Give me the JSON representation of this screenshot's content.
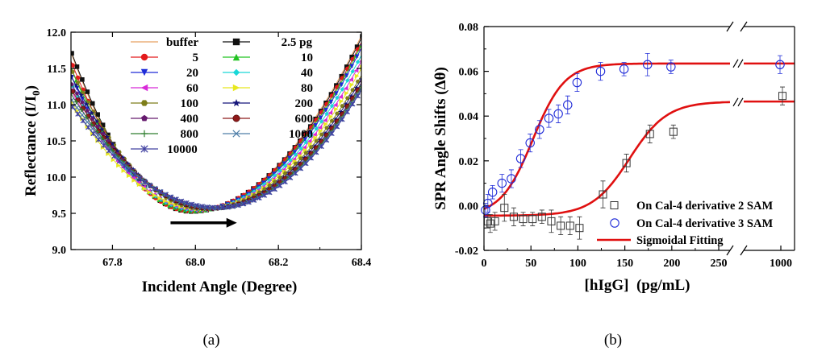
{
  "chart_data": [
    {
      "type": "line",
      "panel_label": "(a)",
      "xlabel": "Incident Angle (Degree)",
      "ylabel_main": "Reflectance (I/I",
      "ylabel_sub": "0",
      "ylabel_close": ")",
      "xlim": [
        67.7,
        68.4
      ],
      "ylim": [
        9.0,
        12.0
      ],
      "xticks": [
        "67.8",
        "68.0",
        "68.2",
        "68.4"
      ],
      "xtick_values": [
        67.8,
        68.0,
        68.2,
        68.4
      ],
      "yticks": [
        "9.0",
        "9.5",
        "10.0",
        "10.5",
        "11.0",
        "11.5",
        "12.0"
      ],
      "ytick_values": [
        9.0,
        9.5,
        10.0,
        10.5,
        11.0,
        11.5,
        12.0
      ],
      "arrow": {
        "from": [
          67.94,
          9.37
        ],
        "to": [
          68.1,
          9.37
        ]
      },
      "series": [
        {
          "name": "buffer",
          "color": "#e8a060",
          "marker": "none",
          "minimum": [
            67.985,
            9.52
          ],
          "left_end": 11.72,
          "right_end": 11.95
        },
        {
          "name": "2.5 pg",
          "color": "#111111",
          "marker": "square",
          "minimum": [
            67.99,
            9.525
          ],
          "left_end": 11.74,
          "right_end": 11.92
        },
        {
          "name": "5",
          "color": "#e31a1c",
          "marker": "circle",
          "minimum": [
            67.99,
            9.53
          ],
          "left_end": 11.6,
          "right_end": 11.86
        },
        {
          "name": "10",
          "color": "#22c322",
          "marker": "triangle-up",
          "minimum": [
            67.995,
            9.535
          ],
          "left_end": 11.5,
          "right_end": 11.82
        },
        {
          "name": "20",
          "color": "#1f2bd8",
          "marker": "triangle-down",
          "minimum": [
            68.0,
            9.54
          ],
          "left_end": 11.4,
          "right_end": 11.78
        },
        {
          "name": "40",
          "color": "#19d8d8",
          "marker": "diamond",
          "minimum": [
            68.005,
            9.545
          ],
          "left_end": 11.3,
          "right_end": 11.68
        },
        {
          "name": "60",
          "color": "#d82ad8",
          "marker": "triangle-left",
          "minimum": [
            68.01,
            9.55
          ],
          "left_end": 11.2,
          "right_end": 11.6
        },
        {
          "name": "80",
          "color": "#e8e81e",
          "marker": "triangle-right",
          "minimum": [
            68.015,
            9.555
          ],
          "left_end": 11.05,
          "right_end": 11.5
        },
        {
          "name": "100",
          "color": "#7e7e1a",
          "marker": "hexagon",
          "minimum": [
            68.02,
            9.56
          ],
          "left_end": 11.5,
          "right_end": 11.4
        },
        {
          "name": "200",
          "color": "#15157a",
          "marker": "star",
          "minimum": [
            68.03,
            9.56
          ],
          "left_end": 11.4,
          "right_end": 11.35
        },
        {
          "name": "400",
          "color": "#661a6e",
          "marker": "pentagon",
          "minimum": [
            68.035,
            9.565
          ],
          "left_end": 11.3,
          "right_end": 11.3
        },
        {
          "name": "600",
          "color": "#8e1a1a",
          "marker": "sphere",
          "minimum": [
            68.04,
            9.57
          ],
          "left_end": 11.22,
          "right_end": 11.28
        },
        {
          "name": "800",
          "color": "#2f7d2f",
          "marker": "plus",
          "minimum": [
            68.045,
            9.57
          ],
          "left_end": 11.15,
          "right_end": 11.25
        },
        {
          "name": "1000",
          "color": "#4e7ea8",
          "marker": "x",
          "minimum": [
            68.05,
            9.575
          ],
          "left_end": 11.08,
          "right_end": 11.22
        },
        {
          "name": "10000",
          "color": "#4040a0",
          "marker": "asterisk",
          "minimum": [
            68.055,
            9.58
          ],
          "left_end": 11.0,
          "right_end": 11.2
        }
      ]
    },
    {
      "type": "scatter",
      "panel_label": "(b)",
      "xlabel": "[hIgG]  (pg/mL)",
      "ylabel_main": "SPR Angle Shifts (",
      "ylabel_theta": "Δθ",
      "ylabel_close": ")",
      "xlim": [
        0,
        1000
      ],
      "x_break": [
        265,
        985
      ],
      "ylim": [
        -0.02,
        0.08
      ],
      "xticks": [
        "0",
        "50",
        "100",
        "150",
        "200",
        "250",
        "1000"
      ],
      "xtick_values": [
        0,
        50,
        100,
        150,
        200,
        250,
        1000
      ],
      "yticks": [
        "-0.02",
        "0.00",
        "0.02",
        "0.04",
        "0.06",
        "0.08"
      ],
      "ytick_values": [
        -0.02,
        0.0,
        0.02,
        0.04,
        0.06,
        0.08
      ],
      "series": [
        {
          "name": "On Cal-4 derivative 2 SAM",
          "marker": "open-square",
          "color": "#333333",
          "x": [
            2.5,
            5,
            10,
            20,
            30,
            40,
            50,
            60,
            70,
            80,
            90,
            100,
            125,
            150,
            175,
            200,
            1000
          ],
          "y": [
            -0.007,
            -0.008,
            -0.007,
            -0.001,
            -0.005,
            -0.006,
            -0.006,
            -0.005,
            -0.007,
            -0.009,
            -0.009,
            -0.01,
            0.005,
            0.019,
            0.032,
            0.033,
            0.049
          ],
          "err": [
            0.003,
            0.004,
            0.004,
            0.006,
            0.004,
            0.003,
            0.003,
            0.003,
            0.005,
            0.004,
            0.004,
            0.005,
            0.006,
            0.004,
            0.004,
            0.003,
            0.004
          ]
        },
        {
          "name": "On Cal-4 derivative 3 SAM",
          "marker": "open-circle",
          "color": "#1f2bd8",
          "x": [
            2.5,
            5,
            10,
            20,
            30,
            40,
            50,
            60,
            70,
            80,
            90,
            100,
            125,
            150,
            175,
            200,
            1000
          ],
          "y": [
            -0.002,
            0.001,
            0.006,
            0.01,
            0.012,
            0.021,
            0.028,
            0.034,
            0.039,
            0.041,
            0.045,
            0.055,
            0.06,
            0.061,
            0.063,
            0.062,
            0.063
          ],
          "err": [
            0.003,
            0.004,
            0.003,
            0.004,
            0.004,
            0.004,
            0.004,
            0.004,
            0.004,
            0.004,
            0.004,
            0.004,
            0.004,
            0.003,
            0.005,
            0.003,
            0.004
          ]
        },
        {
          "name": "Sigmoidal Fitting",
          "marker": "line",
          "color": "#e01010",
          "fits": [
            {
              "bottom": -0.0045,
              "top": 0.0635,
              "x0": 52,
              "dx": 17
            },
            {
              "bottom": -0.0045,
              "top": 0.0465,
              "x0": 155,
              "dx": 20
            }
          ]
        }
      ]
    }
  ]
}
